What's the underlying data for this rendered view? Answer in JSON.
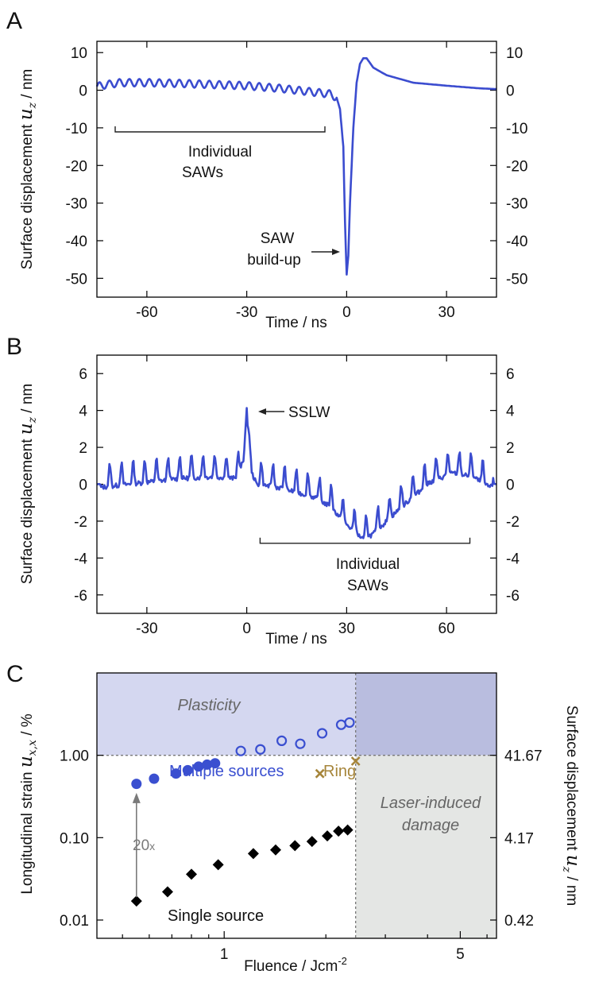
{
  "colors": {
    "line": "#3b4ccf",
    "marker_blue": "#3a4fd0",
    "marker_black": "#000000",
    "ring": "#a6853a",
    "plastic_bg": "#d4d7f0",
    "plastic_dark_bg": "#b9bddf",
    "damage_bg": "#e4e6e4",
    "ref_line": "#777777",
    "arrow_gray": "#7a7a7a"
  },
  "chart_data": [
    {
      "panel": "A",
      "type": "line",
      "xlabel": "Time / ns",
      "ylabel": "Surface displacement",
      "ylabel_symbol": "u",
      "ylabel_sub": "z",
      "ylabel_unit": "/ nm",
      "xlim": [
        -75,
        45
      ],
      "ylim": [
        -55,
        13
      ],
      "xticks": [
        -60,
        -30,
        0,
        30
      ],
      "yticks": [
        10,
        0,
        -10,
        -20,
        -30,
        -40,
        -50
      ],
      "right_yticks": [
        10,
        0,
        -10,
        -20,
        -30,
        -40,
        -50
      ],
      "series": [
        {
          "name": "surface displacement",
          "points": [
            [
              -75,
              1.0
            ],
            [
              -72,
              1.5
            ],
            [
              -68,
              2.0
            ],
            [
              -60,
              2.0
            ],
            [
              -50,
              1.8
            ],
            [
              -40,
              1.5
            ],
            [
              -30,
              1.2
            ],
            [
              -20,
              0.5
            ],
            [
              -10,
              -0.5
            ],
            [
              -5,
              -1.0
            ],
            [
              -3,
              -2.0
            ],
            [
              -2,
              -5.0
            ],
            [
              -1,
              -15
            ],
            [
              -0.5,
              -35
            ],
            [
              0,
              -49
            ],
            [
              0.5,
              -44
            ],
            [
              1,
              -30
            ],
            [
              2,
              -10
            ],
            [
              3,
              2
            ],
            [
              4,
              7
            ],
            [
              5,
              8.5
            ],
            [
              6,
              8.5
            ],
            [
              8,
              6
            ],
            [
              12,
              4
            ],
            [
              20,
              2
            ],
            [
              30,
              1.2
            ],
            [
              40,
              0.5
            ],
            [
              45,
              0.3
            ]
          ],
          "oscillation": {
            "x_from": -75,
            "x_to": -3,
            "amplitude": 1.0,
            "period_ns": 3.0
          }
        }
      ],
      "annotations": [
        {
          "text_lines": [
            "Individual",
            "SAWs"
          ],
          "bracket_x": [
            -70,
            -6
          ],
          "bracket_y": -11
        },
        {
          "text_lines": [
            "SAW",
            "build-up"
          ],
          "arrow_to": [
            -1,
            -45
          ]
        }
      ]
    },
    {
      "panel": "B",
      "type": "line",
      "xlabel": "Time / ns",
      "ylabel": "Surface displacement",
      "ylabel_symbol": "u",
      "ylabel_sub": "z",
      "ylabel_unit": "/ nm",
      "xlim": [
        -45,
        75
      ],
      "ylim": [
        -7,
        7
      ],
      "xticks": [
        -30,
        0,
        30,
        60
      ],
      "yticks": [
        6,
        4,
        2,
        0,
        -2,
        -4,
        -6
      ],
      "right_yticks": [
        6,
        4,
        2,
        0,
        -2,
        -4,
        -6
      ],
      "series": [
        {
          "name": "surface displacement",
          "points": [
            [
              -45,
              0.0
            ],
            [
              -40,
              0.1
            ],
            [
              -35,
              0.2
            ],
            [
              -30,
              0.3
            ],
            [
              -20,
              0.5
            ],
            [
              -10,
              0.6
            ],
            [
              -3,
              0.5
            ],
            [
              -1,
              1.5
            ],
            [
              0,
              4.2
            ],
            [
              1,
              1.0
            ],
            [
              3,
              0.2
            ],
            [
              10,
              0.0
            ],
            [
              20,
              -0.5
            ],
            [
              25,
              -1.0
            ],
            [
              30,
              -2.0
            ],
            [
              35,
              -2.8
            ],
            [
              38,
              -2.5
            ],
            [
              42,
              -1.8
            ],
            [
              48,
              -0.8
            ],
            [
              55,
              0.3
            ],
            [
              62,
              0.8
            ],
            [
              68,
              0.6
            ],
            [
              72,
              0.1
            ],
            [
              75,
              0.0
            ]
          ],
          "oscillation": {
            "x_from": -44,
            "x_to": 74,
            "amplitude": 0.55,
            "period_ns": 3.5
          }
        }
      ],
      "annotations": [
        {
          "text": "SSLW",
          "arrow_to": [
            1.5,
            3.6
          ]
        },
        {
          "text_lines": [
            "Individual",
            "SAWs"
          ],
          "bracket_x": [
            4,
            67
          ],
          "bracket_y": -3.2
        }
      ]
    },
    {
      "panel": "C",
      "type": "scatter",
      "xscale": "log",
      "yscale": "log",
      "xlabel": "Fluence / Jcm",
      "xlabel_sup": "-2",
      "ylabel": "Longitudinal strain",
      "ylabel_symbol": "u",
      "ylabel_sub": "x,x",
      "ylabel_unit": "/ %",
      "right_ylabel": "Surface displacement",
      "right_ylabel_symbol": "u",
      "right_ylabel_sub": "z",
      "right_ylabel_unit": "/ nm",
      "xlim": [
        0.42,
        6.4
      ],
      "ylim": [
        0.006,
        10
      ],
      "xticks": [
        1,
        5
      ],
      "yticks": [
        "1.00",
        "0.10",
        "0.01"
      ],
      "yticks_values": [
        1.0,
        0.1,
        0.01
      ],
      "right_yticks": [
        "41.67",
        "4.17",
        "0.42"
      ],
      "plasticity_threshold": 1.0,
      "damage_threshold_fluence": 2.45,
      "regions": [
        {
          "label": "Plasticity"
        },
        {
          "label_lines": [
            "Laser-induced",
            "damage"
          ]
        }
      ],
      "series": [
        {
          "name": "Multiple sources",
          "marker": "filled-circle",
          "x": [
            0.55,
            0.62,
            0.72,
            0.78,
            0.84,
            0.89,
            0.94
          ],
          "y": [
            0.45,
            0.52,
            0.6,
            0.66,
            0.73,
            0.77,
            0.8
          ]
        },
        {
          "name": "Multiple sources (plastic regime)",
          "marker": "open-circle",
          "x": [
            1.12,
            1.28,
            1.48,
            1.68,
            1.95,
            2.22,
            2.35
          ],
          "y": [
            1.13,
            1.18,
            1.5,
            1.38,
            1.85,
            2.35,
            2.5
          ]
        },
        {
          "name": "Ring",
          "marker": "x",
          "x": [
            1.92,
            2.45
          ],
          "y": [
            0.6,
            0.85
          ]
        },
        {
          "name": "Single source",
          "marker": "diamond",
          "x": [
            0.55,
            0.68,
            0.8,
            0.96,
            1.22,
            1.42,
            1.62,
            1.82,
            2.02,
            2.18,
            2.32
          ],
          "y": [
            0.017,
            0.022,
            0.036,
            0.047,
            0.064,
            0.071,
            0.08,
            0.09,
            0.105,
            0.12,
            0.124
          ]
        }
      ],
      "annotations": [
        {
          "text": "Multiple sources"
        },
        {
          "text": "Ring"
        },
        {
          "text": "Single source"
        },
        {
          "text": "20",
          "text_suffix": "x",
          "arrow_from": [
            0.55,
            0.019
          ],
          "arrow_to": [
            0.55,
            0.35
          ]
        }
      ]
    }
  ]
}
